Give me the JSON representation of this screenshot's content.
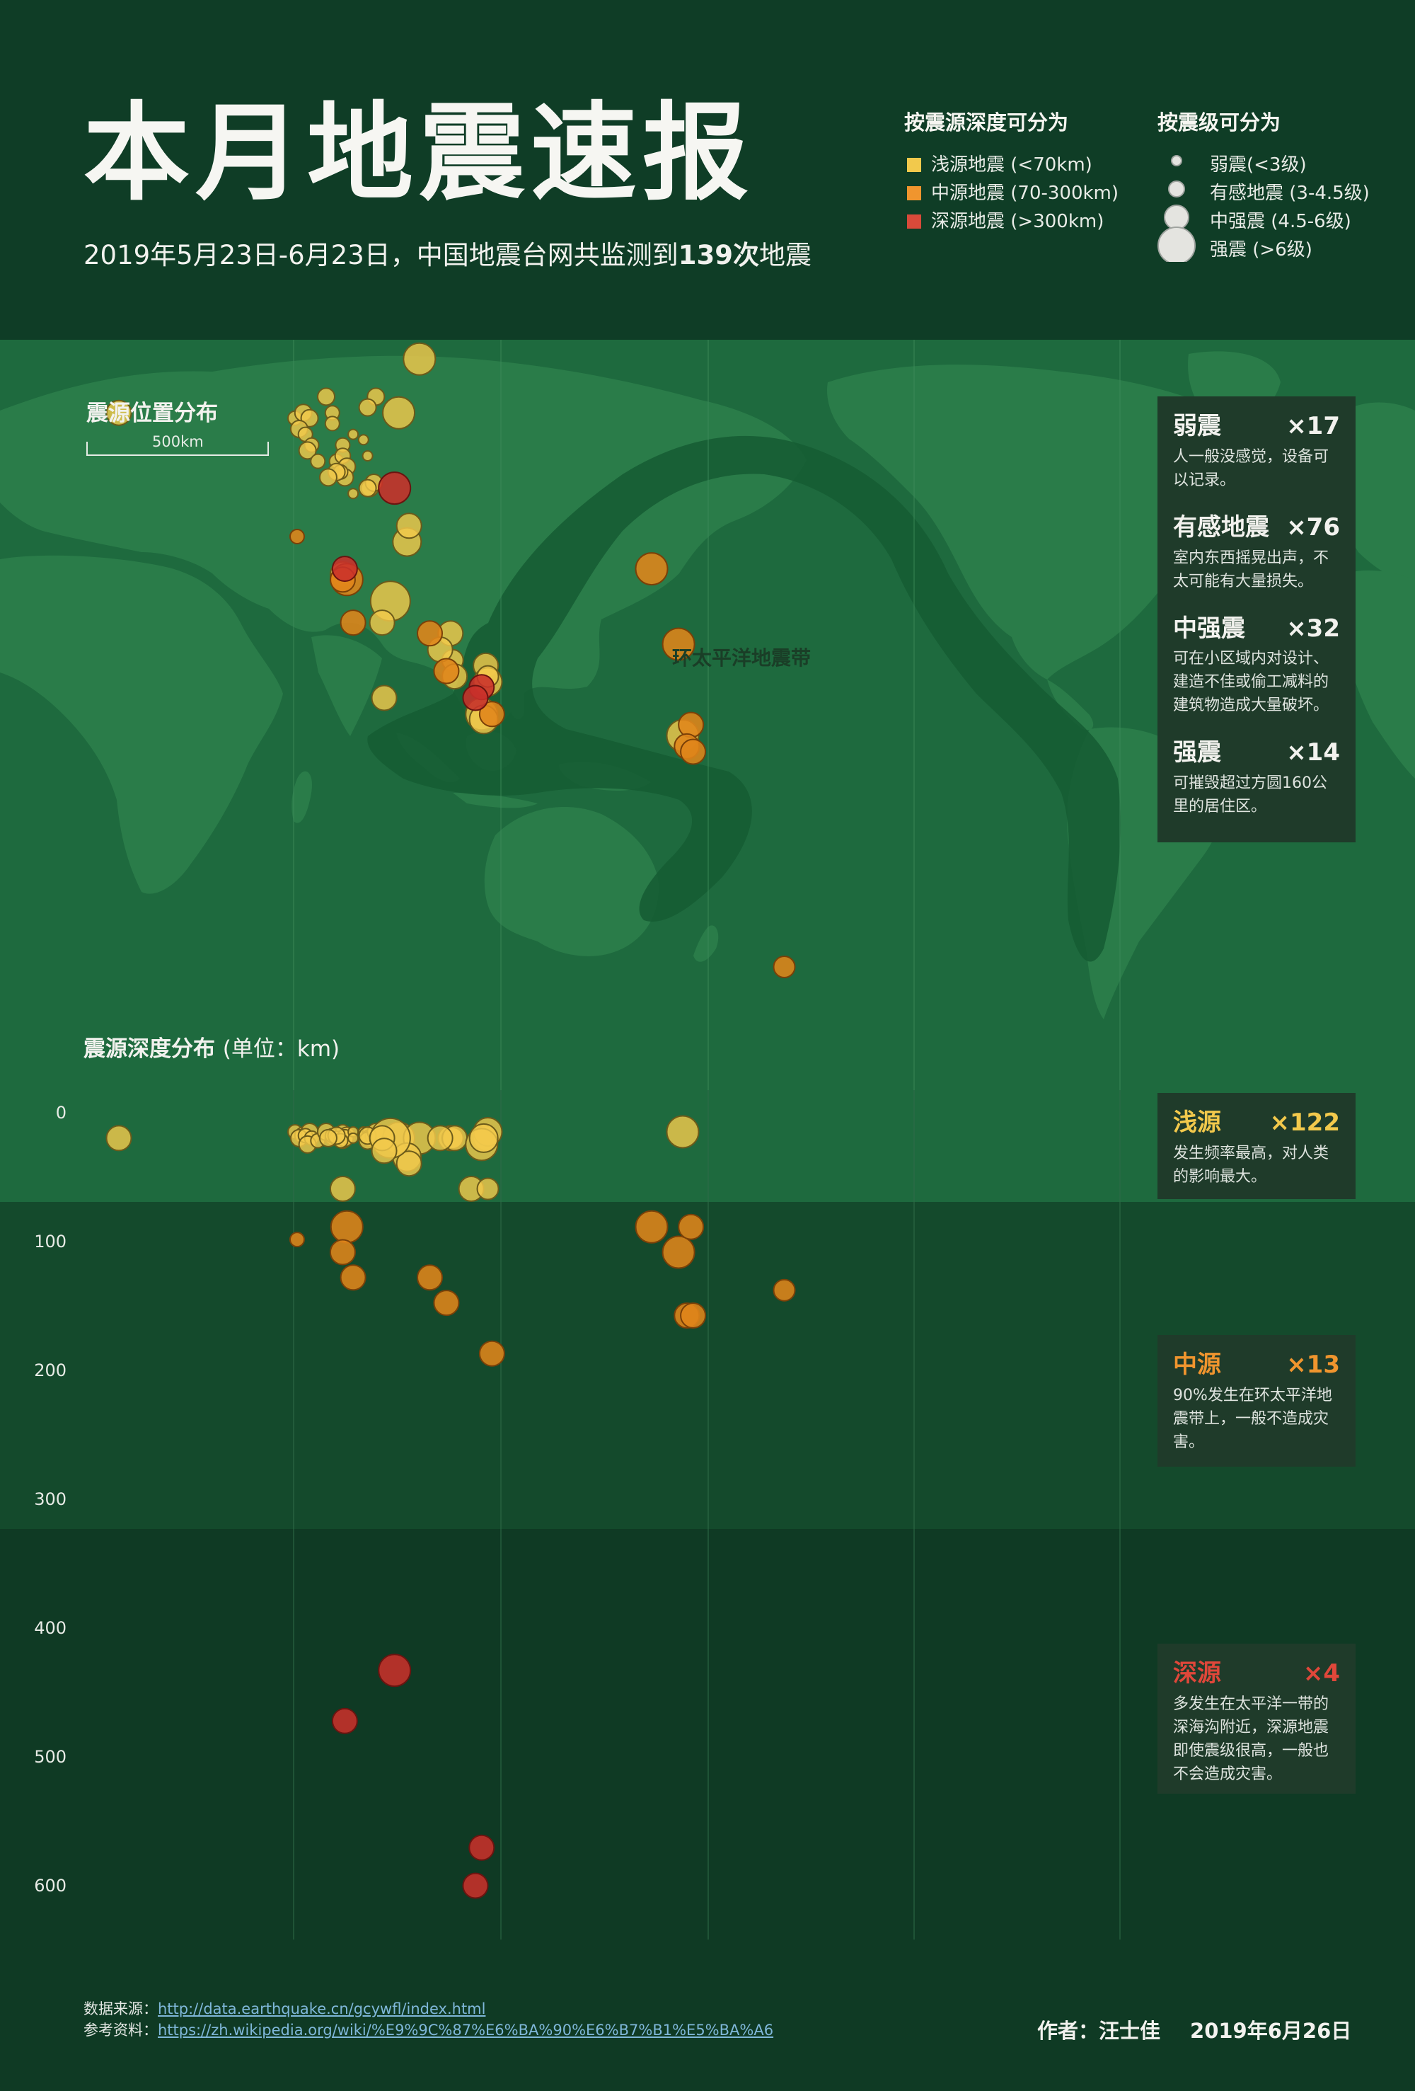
{
  "header": {
    "title": "本月地震速报",
    "subtitle_pre": "2019年5月23日-6月23日，中国地震台网共监测到",
    "subtitle_count": "139次",
    "subtitle_post": "地震"
  },
  "legend_depth": {
    "title": "按震源深度可分为",
    "items": [
      {
        "label": "浅源地震 (<70km)",
        "color": "#f2c94c"
      },
      {
        "label": "中源地震 (70-300km)",
        "color": "#f0952e"
      },
      {
        "label": "深源地震 (>300km)",
        "color": "#d84a3a"
      }
    ]
  },
  "legend_mag": {
    "title": "按震级可分为",
    "items": [
      {
        "label": "弱震(<3级)"
      },
      {
        "label": "有感地震 (3-4.5级)"
      },
      {
        "label": "中强震 (4.5-6级)"
      },
      {
        "label": "强震 (>6级)"
      }
    ]
  },
  "map": {
    "section_label": "震源位置分布",
    "scale_label": "500km",
    "belt_label": "环太平洋地震带"
  },
  "magnitude_cards": [
    {
      "name": "弱震",
      "count": "×17",
      "desc": "人一般没感觉，设备可以记录。"
    },
    {
      "name": "有感地震",
      "count": "×76",
      "desc": "室内东西摇晃出声，不太可能有大量损失。"
    },
    {
      "name": "中强震",
      "count": "×32",
      "desc": "可在小区域内对设计、建造不佳或偷工减料的建筑物造成大量破坏。"
    },
    {
      "name": "强震",
      "count": "×14",
      "desc": "可摧毁超过方圆160公里的居住区。"
    }
  ],
  "depth": {
    "section_label": "震源深度分布",
    "unit": "(单位：km)",
    "ticks": [
      "0",
      "100",
      "200",
      "300",
      "400",
      "500",
      "600"
    ]
  },
  "depth_cards": [
    {
      "name": "浅源",
      "count": "×122",
      "desc": "发生频率最高，对人类的影响最大。",
      "color": "#f2c94c"
    },
    {
      "name": "中源",
      "count": "×13",
      "desc": "90%发生在环太平洋地震带上，一般不造成灾害。",
      "color": "#f0952e"
    },
    {
      "name": "深源",
      "count": "×4",
      "desc": "多发生在太平洋一带的深海沟附近，深源地震即使震级很高，一般也不会造成灾害。",
      "color": "#e0473a"
    }
  ],
  "footer": {
    "source_label": "数据来源：",
    "source_url": "http://data.earthquake.cn/gcywfl/index.html",
    "ref_label": "参考资料：",
    "ref_url": "https://zh.wikipedia.org/wiki/%E9%9C%87%E6%BA%90%E6%B7%B1%E5%BA%A6",
    "author": "作者：汪士佳",
    "date": "2019年6月26日"
  },
  "chart_data": {
    "type": "scatter",
    "title": "本月地震速报",
    "depth_axis": {
      "label": "震源深度分布",
      "unit": "km",
      "range": [
        0,
        640
      ],
      "ticks": [
        0,
        100,
        200,
        300,
        400,
        500,
        600
      ]
    },
    "categories": [
      "shallow",
      "intermediate",
      "deep"
    ],
    "magnitude_classes": [
      {
        "name": "弱震",
        "count": 17
      },
      {
        "name": "有感地震",
        "count": 76
      },
      {
        "name": "中强震",
        "count": 32
      },
      {
        "name": "强震",
        "count": 14
      }
    ],
    "depth_classes": [
      {
        "name": "浅源",
        "count": 122
      },
      {
        "name": "中源",
        "count": 13
      },
      {
        "name": "深源",
        "count": 4
      }
    ],
    "events": [
      {
        "lon": 15,
        "lat": 43,
        "depth": 10,
        "mag": 4.5,
        "cat": "shallow"
      },
      {
        "lon": 100,
        "lat": 42,
        "depth": 5,
        "mag": 3,
        "cat": "shallow"
      },
      {
        "lon": 104,
        "lat": 43,
        "depth": 8,
        "mag": 3.5,
        "cat": "shallow"
      },
      {
        "lon": 107,
        "lat": 42,
        "depth": 5,
        "mag": 3.5,
        "cat": "shallow"
      },
      {
        "lon": 102,
        "lat": 40,
        "depth": 10,
        "mag": 3.5,
        "cat": "shallow"
      },
      {
        "lon": 105,
        "lat": 39,
        "depth": 8,
        "mag": 3,
        "cat": "shallow"
      },
      {
        "lon": 108,
        "lat": 37,
        "depth": 10,
        "mag": 3,
        "cat": "shallow"
      },
      {
        "lon": 106,
        "lat": 36,
        "depth": 15,
        "mag": 3.5,
        "cat": "shallow"
      },
      {
        "lon": 111,
        "lat": 34,
        "depth": 12,
        "mag": 3,
        "cat": "shallow"
      },
      {
        "lon": 115,
        "lat": 46,
        "depth": 5,
        "mag": 3.5,
        "cat": "shallow"
      },
      {
        "lon": 118,
        "lat": 43,
        "depth": 10,
        "mag": 3,
        "cat": "shallow"
      },
      {
        "lon": 118,
        "lat": 41,
        "depth": 8,
        "mag": 3,
        "cat": "shallow"
      },
      {
        "lon": 123,
        "lat": 37,
        "depth": 5,
        "mag": 3,
        "cat": "shallow"
      },
      {
        "lon": 120,
        "lat": 34,
        "depth": 10,
        "mag": 3,
        "cat": "shallow"
      },
      {
        "lon": 123,
        "lat": 35,
        "depth": 12,
        "mag": 3.2,
        "cat": "shallow"
      },
      {
        "lon": 125,
        "lat": 33,
        "depth": 8,
        "mag": 3.5,
        "cat": "shallow"
      },
      {
        "lon": 124,
        "lat": 31,
        "depth": 10,
        "mag": 3.5,
        "cat": "shallow"
      },
      {
        "lon": 122,
        "lat": 32,
        "depth": 12,
        "mag": 3,
        "cat": "shallow"
      },
      {
        "lon": 120,
        "lat": 32,
        "depth": 8,
        "mag": 3.5,
        "cat": "shallow"
      },
      {
        "lon": 116,
        "lat": 31,
        "depth": 10,
        "mag": 3.5,
        "cat": "shallow"
      },
      {
        "lon": 128,
        "lat": 39,
        "depth": 5,
        "mag": 2,
        "cat": "shallow"
      },
      {
        "lon": 133,
        "lat": 38,
        "depth": 5,
        "mag": 2,
        "cat": "shallow"
      },
      {
        "lon": 135,
        "lat": 35,
        "depth": 5,
        "mag": 2,
        "cat": "shallow"
      },
      {
        "lon": 128,
        "lat": 28,
        "depth": 10,
        "mag": 2,
        "cat": "shallow"
      },
      {
        "lon": 136,
        "lat": 29,
        "depth": 10,
        "mag": 3.5,
        "cat": "shallow"
      },
      {
        "lon": 138,
        "lat": 30,
        "depth": 8,
        "mag": 3.5,
        "cat": "shallow"
      },
      {
        "lon": 135,
        "lat": 29,
        "depth": 12,
        "mag": 3.5,
        "cat": "shallow"
      },
      {
        "lon": 139,
        "lat": 46,
        "depth": 5,
        "mag": 3.5,
        "cat": "shallow"
      },
      {
        "lon": 135,
        "lat": 44,
        "depth": 8,
        "mag": 3.5,
        "cat": "shallow"
      },
      {
        "lon": 150,
        "lat": 43,
        "depth": 10,
        "mag": 5.5,
        "cat": "shallow"
      },
      {
        "lon": 185,
        "lat": 59,
        "depth": 50,
        "mag": 4.5,
        "cat": "shallow"
      },
      {
        "lon": 160,
        "lat": 53,
        "depth": 10,
        "mag": 5.5,
        "cat": "shallow"
      },
      {
        "lon": 154,
        "lat": 19,
        "depth": 25,
        "mag": 5,
        "cat": "shallow"
      },
      {
        "lon": 155,
        "lat": 22,
        "depth": 30,
        "mag": 4.5,
        "cat": "shallow"
      },
      {
        "lon": 123,
        "lat": 13,
        "depth": 50,
        "mag": 4.5,
        "cat": "shallow"
      },
      {
        "lon": 146,
        "lat": 8,
        "depth": 10,
        "mag": 6.5,
        "cat": "shallow"
      },
      {
        "lon": 142,
        "lat": 4,
        "depth": 10,
        "mag": 4.5,
        "cat": "shallow"
      },
      {
        "lon": 143,
        "lat": -10,
        "depth": 20,
        "mag": 4.5,
        "cat": "shallow"
      },
      {
        "lon": 175,
        "lat": 2,
        "depth": 10,
        "mag": 4.5,
        "cat": "shallow"
      },
      {
        "lon": 176,
        "lat": -3,
        "depth": 10,
        "mag": 4,
        "cat": "shallow"
      },
      {
        "lon": 177,
        "lat": -6,
        "depth": 10,
        "mag": 4.5,
        "cat": "shallow"
      },
      {
        "lon": 170,
        "lat": -1,
        "depth": 10,
        "mag": 4.5,
        "cat": "shallow"
      },
      {
        "lon": 192,
        "lat": -4,
        "depth": 10,
        "mag": 4.5,
        "cat": "shallow"
      },
      {
        "lon": 193,
        "lat": -7,
        "depth": 5,
        "mag": 5,
        "cat": "shallow"
      },
      {
        "lon": 190,
        "lat": -13,
        "depth": 15,
        "mag": 5.5,
        "cat": "shallow"
      },
      {
        "lon": 191,
        "lat": -14,
        "depth": 10,
        "mag": 5,
        "cat": "shallow"
      },
      {
        "lon": 193,
        "lat": -6,
        "depth": 50,
        "mag": 4,
        "cat": "shallow"
      },
      {
        "lon": 287,
        "lat": -17,
        "depth": 5,
        "mag": 5.5,
        "cat": "shallow"
      },
      {
        "lon": 272,
        "lat": 14,
        "depth": 80,
        "mag": 5.5,
        "cat": "intermediate"
      },
      {
        "lon": 285,
        "lat": 0,
        "depth": 100,
        "mag": 5.5,
        "cat": "intermediate"
      },
      {
        "lon": 291,
        "lat": -15,
        "depth": 80,
        "mag": 4.5,
        "cat": "intermediate"
      },
      {
        "lon": 289,
        "lat": -19,
        "depth": 150,
        "mag": 4.5,
        "cat": "intermediate"
      },
      {
        "lon": 292,
        "lat": -20,
        "depth": 150,
        "mag": 4.5,
        "cat": "intermediate"
      },
      {
        "lon": 336,
        "lat": -60,
        "depth": 130,
        "mag": 4,
        "cat": "intermediate"
      },
      {
        "lon": 101,
        "lat": 20,
        "depth": 90,
        "mag": 3,
        "cat": "intermediate"
      },
      {
        "lon": 125,
        "lat": 12,
        "depth": 80,
        "mag": 5.5,
        "cat": "intermediate"
      },
      {
        "lon": 123,
        "lat": 12,
        "depth": 100,
        "mag": 4.5,
        "cat": "intermediate"
      },
      {
        "lon": 128,
        "lat": 4,
        "depth": 120,
        "mag": 4.5,
        "cat": "intermediate"
      },
      {
        "lon": 165,
        "lat": 2,
        "depth": 120,
        "mag": 4.5,
        "cat": "intermediate"
      },
      {
        "lon": 173,
        "lat": -5,
        "depth": 140,
        "mag": 4.5,
        "cat": "intermediate"
      },
      {
        "lon": 195,
        "lat": -13,
        "depth": 180,
        "mag": 4.5,
        "cat": "intermediate"
      },
      {
        "lon": 148,
        "lat": 29,
        "depth": 430,
        "mag": 5.5,
        "cat": "deep"
      },
      {
        "lon": 124,
        "lat": 14,
        "depth": 470,
        "mag": 4.5,
        "cat": "deep"
      },
      {
        "lon": 190,
        "lat": -8,
        "depth": 570,
        "mag": 4.5,
        "cat": "deep"
      },
      {
        "lon": 187,
        "lat": -10,
        "depth": 600,
        "mag": 4.5,
        "cat": "deep"
      }
    ]
  }
}
